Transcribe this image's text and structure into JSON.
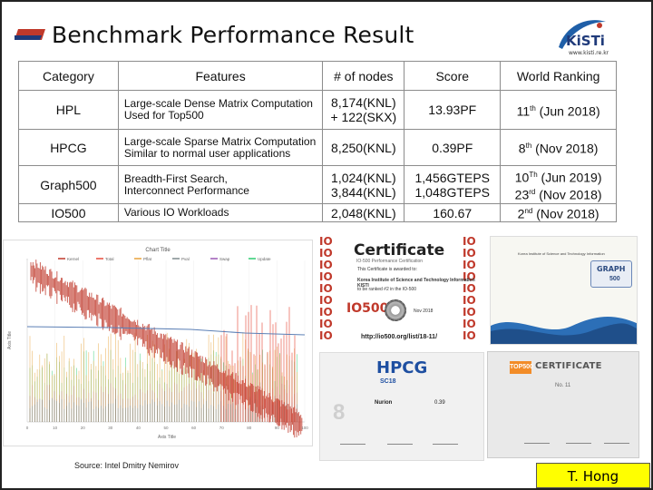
{
  "header": {
    "title": "Benchmark Performance Result",
    "org_logo_text": "KiSTi",
    "org_url": "www.kisti.re.kr"
  },
  "table": {
    "headers": [
      "Category",
      "Features",
      "# of nodes",
      "Score",
      "World Ranking"
    ],
    "rows": [
      {
        "category": "HPL",
        "features_1": "Large-scale Dense Matrix Computation",
        "features_2": "Used for Top500",
        "nodes_1": "8,174(KNL)",
        "nodes_2": "+ 122(SKX)",
        "score_1": "13.93PF",
        "score_2": "",
        "rank_1_num": "11",
        "rank_1_sup": "th",
        "rank_1_date": " (Jun 2018)",
        "rank_2_num": "",
        "rank_2_sup": "",
        "rank_2_date": ""
      },
      {
        "category": "HPCG",
        "features_1": "Large-scale Sparse Matrix Computation",
        "features_2": "Similar to normal user applications",
        "nodes_1": "8,250(KNL)",
        "nodes_2": "",
        "score_1": "0.39PF",
        "score_2": "",
        "rank_1_num": "8",
        "rank_1_sup": "th",
        "rank_1_date": " (Nov 2018)",
        "rank_2_num": "",
        "rank_2_sup": "",
        "rank_2_date": ""
      },
      {
        "category": "Graph500",
        "features_1": "Breadth-First Search,",
        "features_2": "Interconnect Performance",
        "nodes_1": "1,024(KNL)",
        "nodes_2": "3,844(KNL)",
        "score_1": "1,456GTEPS",
        "score_2": "1,048GTEPS",
        "rank_1_num": "10",
        "rank_1_sup": "Th",
        "rank_1_date": " (Jun 2019)",
        "rank_2_num": "23",
        "rank_2_sup": "rd",
        "rank_2_date": " (Nov 2018)"
      },
      {
        "category": "IO500",
        "features_1": "Various IO Workloads",
        "features_2": "",
        "nodes_1": "2,048(KNL)",
        "nodes_2": "",
        "score_1": "160.67",
        "score_2": "",
        "rank_1_num": "2",
        "rank_1_sup": "nd",
        "rank_1_date": " (Nov 2018)",
        "rank_2_num": "",
        "rank_2_sup": "",
        "rank_2_date": ""
      }
    ]
  },
  "chart_panel": {
    "chart_title": "Chart Title",
    "x_axis_label": "Axis Title",
    "y_axis_label": "Axis Title",
    "legend": [
      "Kernel",
      "Total",
      "Pflat",
      "Pval",
      "Swap",
      "Update"
    ],
    "x_ticks": [
      "0",
      "10",
      "20",
      "30",
      "40",
      "50",
      "60",
      "70",
      "80",
      "90",
      "100"
    ],
    "colors": {
      "kernel": "#c0392b",
      "total": "#e74c3c",
      "pflat": "#e8a33c",
      "pval": "#7f8c8d",
      "swap": "#9b59b6",
      "update": "#2ecc71",
      "flat_line": "#5b7fb5"
    },
    "source": "Source: Intel Dmitry Nemirov"
  },
  "certificates": {
    "io500": {
      "io_label": "IO",
      "title": "Certificate",
      "subtitle": "IO-500 Performance Certification",
      "awarded_line": "This Certificate is awarded to:",
      "awardee": "Korea Institute of Science and Technology Information KISTI",
      "ranked_line": "to be ranked #2 in the IO-500",
      "big_logo": "IO500",
      "date": "Nov 2018",
      "link": "http://io500.org/list/18-11/"
    },
    "graph500": {
      "awardee": "Korea Institute of Science and Technology Information",
      "badge_label": "GRAPH",
      "badge_num": "500"
    },
    "hpcg": {
      "logo": "HPCG",
      "event": "SC18",
      "system": "Nurion",
      "value": "0.39",
      "big_number": "8"
    },
    "top500": {
      "badge": "TOP500",
      "title": "CERTIFICATE",
      "rank_line": "No. 11"
    }
  },
  "footer": {
    "author": "T. Hong"
  }
}
